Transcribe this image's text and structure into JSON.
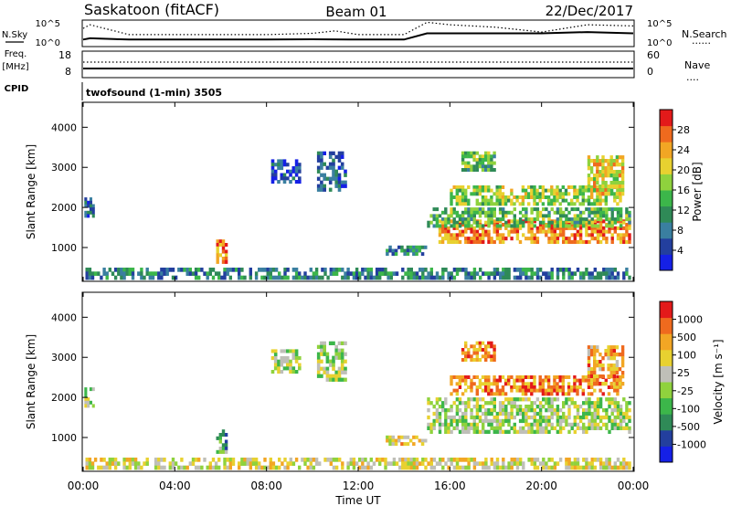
{
  "header": {
    "station": "Saskatoon (fitACF)",
    "beam": "Beam 01",
    "date": "22/Dec/2017"
  },
  "left_labels": {
    "nsky": "N.Sky",
    "freq_top": "Freq.",
    "freq_unit": "[MHz]",
    "cpid": "CPID"
  },
  "right_labels": {
    "nsearch": "N.Search",
    "nsearch_style": "......",
    "nave": "Nave",
    "nave_style": "...."
  },
  "program": "twofsound (1-min) 3505",
  "chart_data": [
    {
      "type": "line",
      "name": "noise-panel",
      "left_ticks": [
        "10^5",
        "10^0"
      ],
      "right_ticks": [
        "10^5",
        "10^0"
      ],
      "series": [
        {
          "name": "N.Sky",
          "style": "solid",
          "x_hours": [
            0,
            0.3,
            2,
            4,
            6,
            8,
            10,
            12,
            14,
            15,
            16,
            18,
            20,
            22,
            24
          ],
          "level": [
            0.25,
            0.3,
            0.25,
            0.25,
            0.25,
            0.25,
            0.26,
            0.25,
            0.25,
            0.5,
            0.5,
            0.5,
            0.5,
            0.55,
            0.5
          ]
        },
        {
          "name": "N.Search",
          "style": "dotted",
          "x_hours": [
            0,
            0.3,
            2,
            4,
            6,
            8,
            10,
            11,
            12,
            14,
            15,
            16,
            18,
            20,
            22,
            24
          ],
          "level": [
            0.7,
            0.85,
            0.45,
            0.45,
            0.45,
            0.45,
            0.5,
            0.6,
            0.45,
            0.45,
            0.95,
            0.85,
            0.75,
            0.55,
            0.85,
            0.8
          ]
        }
      ]
    },
    {
      "type": "line",
      "name": "freq-panel",
      "left_ticks": [
        "18",
        "8"
      ],
      "right_ticks": [
        "60",
        "0"
      ],
      "series": [
        {
          "name": "Freq.",
          "style": "solid",
          "value_mhz": 10
        },
        {
          "name": "Nave",
          "style": "dotted",
          "value": 24
        }
      ]
    },
    {
      "type": "heatmap",
      "name": "power",
      "ylabel": "Slant Range [km]",
      "yticks": [
        "1000",
        "2000",
        "3000",
        "4000"
      ],
      "ylim": [
        180,
        4600
      ],
      "colorbar_label": "Power [dB]",
      "colorbar_ticks": [
        "4",
        "8",
        "12",
        "16",
        "20",
        "24",
        "28"
      ],
      "colors": [
        "#1520e6",
        "#233f9e",
        "#3a7fa0",
        "#2f8a57",
        "#3cb64a",
        "#8fd23d",
        "#e8d130",
        "#f2a624",
        "#ef6a1e",
        "#e31a1a"
      ],
      "regions": [
        {
          "t": [
            0.05,
            0.5
          ],
          "r": [
            1750,
            2250
          ],
          "v": 0.2
        },
        {
          "t": [
            5.8,
            6.3
          ],
          "r": [
            600,
            1200
          ],
          "v": 0.8
        },
        {
          "t": [
            8.2,
            9.5
          ],
          "r": [
            2600,
            3200
          ],
          "v": 0.15
        },
        {
          "t": [
            10.2,
            11.5
          ],
          "r": [
            2400,
            3400
          ],
          "v": 0.2
        },
        {
          "t": [
            13.2,
            15.0
          ],
          "r": [
            800,
            1050
          ],
          "v": 0.3
        },
        {
          "t": [
            15.5,
            23.9
          ],
          "r": [
            1100,
            1700
          ],
          "v": 0.8
        },
        {
          "t": [
            15.0,
            23.9
          ],
          "r": [
            1500,
            2000
          ],
          "v": 0.45
        },
        {
          "t": [
            16.0,
            23.5
          ],
          "r": [
            2050,
            2550
          ],
          "v": 0.55
        },
        {
          "t": [
            16.5,
            18.0
          ],
          "r": [
            2900,
            3400
          ],
          "v": 0.45
        },
        {
          "t": [
            22.0,
            23.6
          ],
          "r": [
            2300,
            3300
          ],
          "v": 0.65
        },
        {
          "t": [
            0.1,
            23.9
          ],
          "r": [
            200,
            500
          ],
          "v": 0.3
        }
      ]
    },
    {
      "type": "heatmap",
      "name": "velocity",
      "ylabel": "Slant Range [km]",
      "yticks": [
        "1000",
        "2000",
        "3000",
        "4000"
      ],
      "ylim": [
        180,
        4600
      ],
      "colorbar_label": "Velocity [m s⁻¹]",
      "colorbar_ticks": [
        "1000",
        "500",
        "100",
        "25",
        "-25",
        "-100",
        "-500",
        "-1000"
      ],
      "colors": [
        "#1520e6",
        "#233f9e",
        "#2f8a57",
        "#3cb64a",
        "#8fd23d",
        "#bfbfb8",
        "#e8d130",
        "#f2a624",
        "#ef6a1e",
        "#e31a1a"
      ],
      "regions": [
        {
          "t": [
            0.05,
            0.5
          ],
          "r": [
            1750,
            2250
          ],
          "v": 0.5
        },
        {
          "t": [
            5.8,
            6.3
          ],
          "r": [
            600,
            1200
          ],
          "v": 0.35
        },
        {
          "t": [
            8.2,
            9.5
          ],
          "r": [
            2600,
            3200
          ],
          "v": 0.5
        },
        {
          "t": [
            10.2,
            11.5
          ],
          "r": [
            2400,
            3400
          ],
          "v": 0.5
        },
        {
          "t": [
            13.2,
            15.0
          ],
          "r": [
            800,
            1050
          ],
          "v": 0.65
        },
        {
          "t": [
            15.0,
            23.9
          ],
          "r": [
            1100,
            2000
          ],
          "v": 0.5
        },
        {
          "t": [
            16.0,
            23.5
          ],
          "r": [
            2050,
            2550
          ],
          "v": 0.8
        },
        {
          "t": [
            16.5,
            18.0
          ],
          "r": [
            2900,
            3400
          ],
          "v": 0.8
        },
        {
          "t": [
            22.0,
            23.6
          ],
          "r": [
            2300,
            3300
          ],
          "v": 0.75
        },
        {
          "t": [
            0.1,
            23.9
          ],
          "r": [
            200,
            500
          ],
          "v": 0.6
        }
      ]
    }
  ],
  "x_axis": {
    "ticks": [
      "00:00",
      "04:00",
      "08:00",
      "12:00",
      "16:00",
      "20:00",
      "00:00"
    ],
    "label": "Time UT"
  }
}
